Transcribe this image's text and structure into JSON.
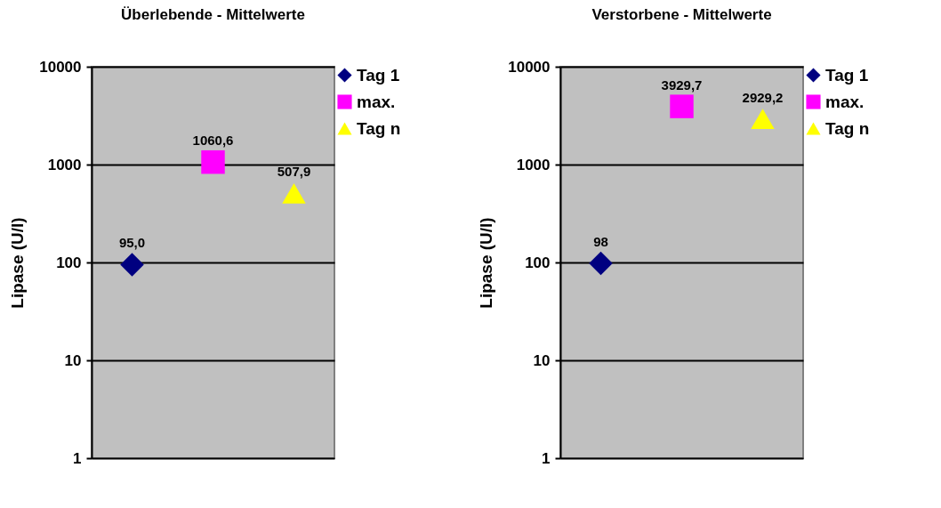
{
  "chart_data": [
    {
      "type": "scatter",
      "title": "Überlebende - Mittelwerte",
      "ylabel": "Lipase (U/l)",
      "log": true,
      "ylim": [
        1,
        10000
      ],
      "yticks": [
        1,
        10,
        100,
        1000,
        10000
      ],
      "grid": "y",
      "legend": "right",
      "categories": [
        null,
        null,
        null
      ],
      "series": [
        {
          "name": "Tag 1",
          "color": "#000080",
          "marker": "diamond",
          "values": [
            95.0,
            null,
            null
          ],
          "value_labels": [
            "95,0",
            null,
            null
          ]
        },
        {
          "name": "max.",
          "color": "#ff00ff",
          "marker": "square",
          "values": [
            null,
            1060.6,
            null
          ],
          "value_labels": [
            null,
            "1060,6",
            null
          ]
        },
        {
          "name": "Tag n",
          "color": "#ffff00",
          "marker": "triangle",
          "values": [
            null,
            null,
            507.9
          ],
          "value_labels": [
            null,
            null,
            "507,9"
          ]
        }
      ]
    },
    {
      "type": "scatter",
      "title": "Verstorbene - Mittelwerte",
      "ylabel": "Lipase (U/l)",
      "log": true,
      "ylim": [
        1,
        10000
      ],
      "yticks": [
        1,
        10,
        100,
        1000,
        10000
      ],
      "grid": "y",
      "legend": "right",
      "categories": [
        null,
        null,
        null
      ],
      "series": [
        {
          "name": "Tag 1",
          "color": "#000080",
          "marker": "diamond",
          "values": [
            98,
            null,
            null
          ],
          "value_labels": [
            "98",
            null,
            null
          ]
        },
        {
          "name": "max.",
          "color": "#ff00ff",
          "marker": "square",
          "values": [
            null,
            3929.7,
            null
          ],
          "value_labels": [
            null,
            "3929,7",
            null
          ]
        },
        {
          "name": "Tag n",
          "color": "#ffff00",
          "marker": "triangle",
          "values": [
            null,
            null,
            2929.2
          ],
          "value_labels": [
            null,
            null,
            "2929,2"
          ]
        }
      ]
    }
  ]
}
